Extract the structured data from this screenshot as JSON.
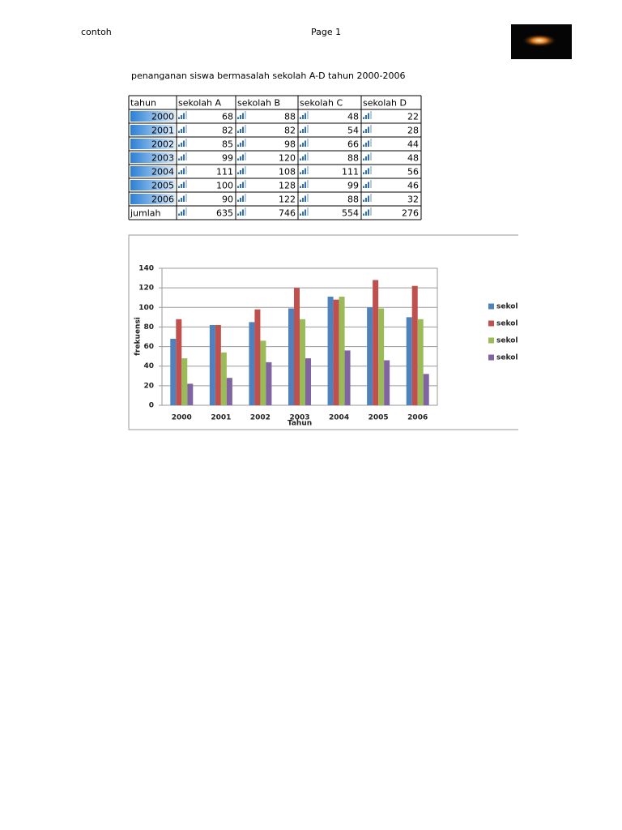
{
  "header": {
    "left": "contoh",
    "center": "Page 1"
  },
  "title": "penanganan siswa bermasalah sekolah A-D tahun 2000-2006",
  "table": {
    "columns": [
      "tahun",
      "sekolah A",
      "sekolah B",
      "sekolah C",
      "sekolah D"
    ],
    "rows": [
      [
        "2000",
        68,
        88,
        48,
        22
      ],
      [
        "2001",
        82,
        82,
        54,
        28
      ],
      [
        "2002",
        85,
        98,
        66,
        44
      ],
      [
        "2003",
        99,
        120,
        88,
        48
      ],
      [
        "2004",
        111,
        108,
        111,
        56
      ],
      [
        "2005",
        100,
        128,
        99,
        46
      ],
      [
        "2006",
        90,
        122,
        88,
        32
      ],
      [
        "jumlah",
        635,
        746,
        554,
        276
      ]
    ]
  },
  "chart_data": {
    "type": "bar",
    "x_label": "Tahun",
    "y_label": "frekuensi",
    "categories": [
      "2000",
      "2001",
      "2002",
      "2003",
      "2004",
      "2005",
      "2006"
    ],
    "series": [
      {
        "name": "sekolah A",
        "color": "#4f81bd",
        "values": [
          68,
          82,
          85,
          99,
          111,
          100,
          90
        ]
      },
      {
        "name": "sekolah B",
        "color": "#c0504d",
        "values": [
          88,
          82,
          98,
          120,
          108,
          128,
          122
        ]
      },
      {
        "name": "sekolah C",
        "color": "#9bbb59",
        "values": [
          48,
          54,
          66,
          88,
          111,
          99,
          88
        ]
      },
      {
        "name": "sekolah D",
        "color": "#8064a2",
        "values": [
          22,
          28,
          44,
          48,
          56,
          46,
          32
        ]
      }
    ],
    "ylim": [
      0,
      140
    ],
    "yticks": [
      0,
      20,
      40,
      60,
      80,
      100,
      120,
      140
    ],
    "grid": true,
    "legend": "right"
  }
}
